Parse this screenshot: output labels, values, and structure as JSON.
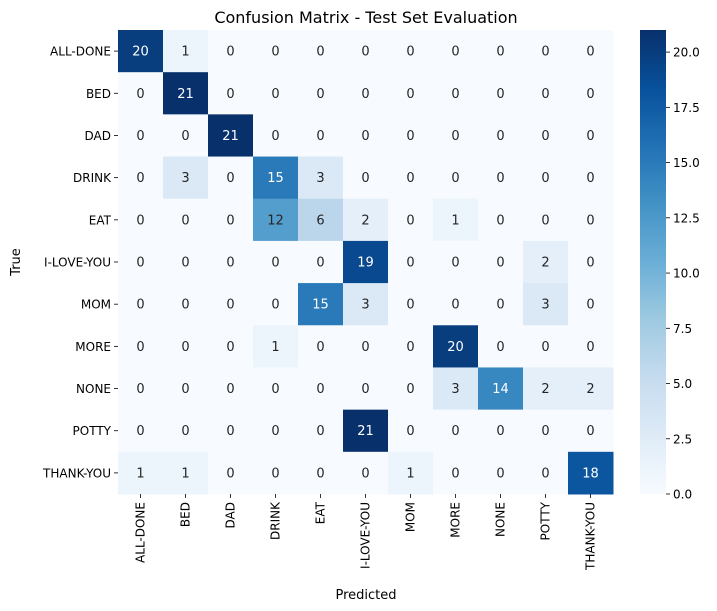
{
  "chart_data": {
    "type": "heatmap",
    "title": "Confusion Matrix - Test Set Evaluation",
    "xlabel": "Predicted",
    "ylabel": "True",
    "x_categories": [
      "ALL-DONE",
      "BED",
      "DAD",
      "DRINK",
      "EAT",
      "I-LOVE-YOU",
      "MOM",
      "MORE",
      "NONE",
      "POTTY",
      "THANK-YOU"
    ],
    "y_categories": [
      "ALL-DONE",
      "BED",
      "DAD",
      "DRINK",
      "EAT",
      "I-LOVE-YOU",
      "MOM",
      "MORE",
      "NONE",
      "POTTY",
      "THANK-YOU"
    ],
    "values": [
      [
        20,
        1,
        0,
        0,
        0,
        0,
        0,
        0,
        0,
        0,
        0
      ],
      [
        0,
        21,
        0,
        0,
        0,
        0,
        0,
        0,
        0,
        0,
        0
      ],
      [
        0,
        0,
        21,
        0,
        0,
        0,
        0,
        0,
        0,
        0,
        0
      ],
      [
        0,
        3,
        0,
        15,
        3,
        0,
        0,
        0,
        0,
        0,
        0
      ],
      [
        0,
        0,
        0,
        12,
        6,
        2,
        0,
        1,
        0,
        0,
        0
      ],
      [
        0,
        0,
        0,
        0,
        0,
        19,
        0,
        0,
        0,
        2,
        0
      ],
      [
        0,
        0,
        0,
        0,
        15,
        3,
        0,
        0,
        0,
        3,
        0
      ],
      [
        0,
        0,
        0,
        1,
        0,
        0,
        0,
        20,
        0,
        0,
        0
      ],
      [
        0,
        0,
        0,
        0,
        0,
        0,
        0,
        3,
        14,
        2,
        2
      ],
      [
        0,
        0,
        0,
        0,
        0,
        21,
        0,
        0,
        0,
        0,
        0
      ],
      [
        1,
        1,
        0,
        0,
        0,
        0,
        1,
        0,
        0,
        0,
        18
      ]
    ],
    "colorscale": "Blues",
    "colorbar": {
      "range": [
        0,
        21
      ],
      "ticks": [
        0,
        2.5,
        5,
        7.5,
        10,
        12.5,
        15,
        17.5,
        20
      ],
      "tick_labels": [
        "0.0",
        "2.5",
        "5.0",
        "7.5",
        "10.0",
        "12.5",
        "15.0",
        "17.5",
        "20.0"
      ]
    },
    "grid": false,
    "legend": "colorbar-right"
  }
}
